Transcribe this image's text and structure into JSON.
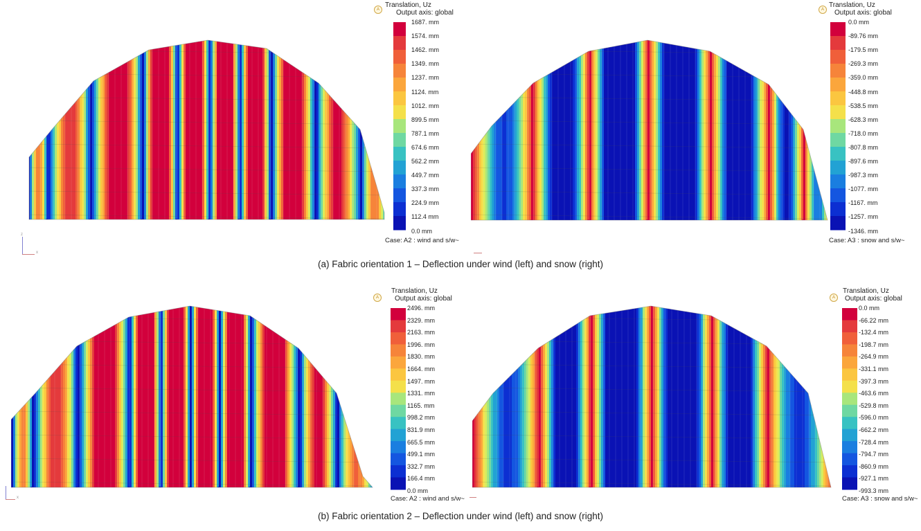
{
  "captions": {
    "a": "(a) Fabric orientation 1 – Deflection under wind (left) and snow (right)",
    "b": "(b) Fabric orientation 2 – Deflection under wind (left) and snow (right)"
  },
  "badge_text": "A",
  "axis_labels": {
    "x": "x",
    "z": "z"
  },
  "panels": [
    {
      "id": "p1",
      "legend": {
        "title1": "Translation, Uz",
        "title2": "Output axis: global",
        "labels": [
          "1687. mm",
          "1574. mm",
          "1462. mm",
          "1349. mm",
          "1237. mm",
          "1124. mm",
          "1012. mm",
          "899.5 mm",
          "787.1 mm",
          "674.6 mm",
          "562.2 mm",
          "449.7 mm",
          "337.3 mm",
          "224.9 mm",
          "112.4 mm",
          "0.0 mm"
        ],
        "case": "Case: A2 : wind and s/w~"
      }
    },
    {
      "id": "p2",
      "legend": {
        "title1": "Translation, Uz",
        "title2": "Output axis: global",
        "labels": [
          "0.0 mm",
          "-89.76 mm",
          "-179.5 mm",
          "-269.3 mm",
          "-359.0 mm",
          "-448.8 mm",
          "-538.5 mm",
          "-628.3 mm",
          "-718.0 mm",
          "-807.8 mm",
          "-897.6 mm",
          "-987.3 mm",
          "-1077. mm",
          "-1167. mm",
          "-1257. mm",
          "-1346. mm"
        ],
        "case": "Case: A3 : snow and s/w~"
      }
    },
    {
      "id": "p3",
      "legend": {
        "title1": "Translation, Uz",
        "title2": "Output axis: global",
        "labels": [
          "2496. mm",
          "2329. mm",
          "2163. mm",
          "1996. mm",
          "1830. mm",
          "1664. mm",
          "1497. mm",
          "1331. mm",
          "1165. mm",
          "998.2 mm",
          "831.9 mm",
          "665.5 mm",
          "499.1 mm",
          "332.7 mm",
          "166.4 mm",
          "0.0 mm"
        ],
        "case": "Case: A2 : wind and s/w~"
      }
    },
    {
      "id": "p4",
      "legend": {
        "title1": "Translation, Uz",
        "title2": "Output axis: global",
        "labels": [
          "0.0 mm",
          "-66.22 mm",
          "-132.4 mm",
          "-198.7 mm",
          "-264.9 mm",
          "-331.1 mm",
          "-397.3 mm",
          "-463.6 mm",
          "-529.8 mm",
          "-596.0 mm",
          "-662.2 mm",
          "-728.4 mm",
          "-794.7 mm",
          "-860.9 mm",
          "-927.1 mm",
          "-993.3 mm"
        ],
        "case": "Case: A3 : snow and s/w~"
      }
    }
  ],
  "colors": {
    "scale": [
      "#d2003c",
      "#e43a3c",
      "#f05f3a",
      "#f6843a",
      "#fba63c",
      "#fbc640",
      "#f4e04a",
      "#d8ec5c",
      "#a8e67c",
      "#6fd8a2",
      "#38c2c2",
      "#22a2d4",
      "#1a7ee0",
      "#1456e0",
      "#0c2fd2",
      "#0a12b4"
    ]
  }
}
